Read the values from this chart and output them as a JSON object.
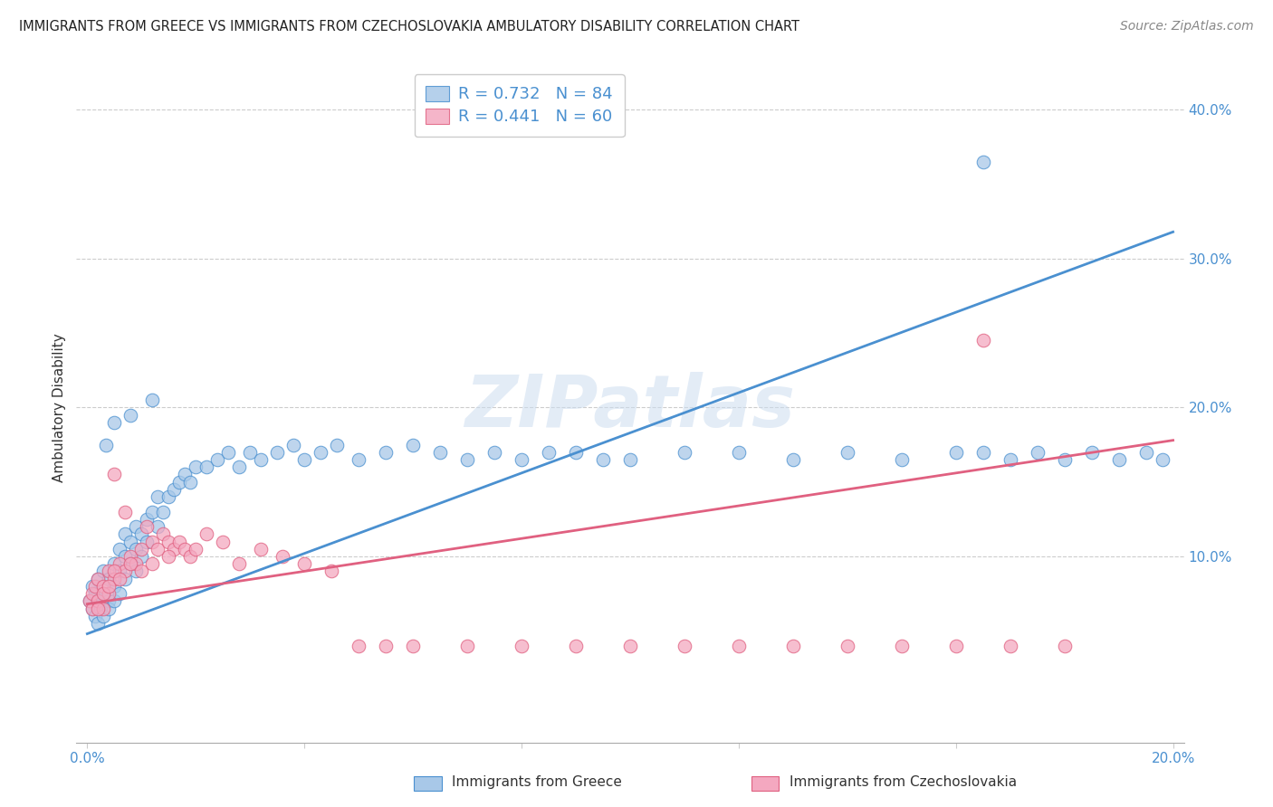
{
  "title": "IMMIGRANTS FROM GREECE VS IMMIGRANTS FROM CZECHOSLOVAKIA AMBULATORY DISABILITY CORRELATION CHART",
  "source": "Source: ZipAtlas.com",
  "ylabel": "Ambulatory Disability",
  "watermark": "ZIPatlas",
  "legend_line1": "R = 0.732   N = 84",
  "legend_line2": "R = 0.441   N = 60",
  "blue_color": "#a8c8e8",
  "pink_color": "#f4a8c0",
  "blue_line_color": "#4a90d0",
  "pink_line_color": "#e06080",
  "blue_text_color": "#4a90d0",
  "pink_text_color": "#e06080",
  "right_tick_color": "#4a90d0",
  "xlim": [
    -0.002,
    0.202
  ],
  "ylim": [
    -0.025,
    0.425
  ],
  "blue_line_x0": 0.0,
  "blue_line_y0": 0.048,
  "blue_line_x1": 0.2,
  "blue_line_y1": 0.318,
  "pink_line_x0": 0.0,
  "pink_line_y0": 0.068,
  "pink_line_x1": 0.2,
  "pink_line_y1": 0.178,
  "blue_x": [
    0.0005,
    0.001,
    0.001,
    0.0015,
    0.0015,
    0.002,
    0.002,
    0.002,
    0.0025,
    0.003,
    0.003,
    0.003,
    0.004,
    0.004,
    0.004,
    0.005,
    0.005,
    0.005,
    0.006,
    0.006,
    0.006,
    0.007,
    0.007,
    0.007,
    0.008,
    0.008,
    0.009,
    0.009,
    0.009,
    0.01,
    0.01,
    0.011,
    0.011,
    0.012,
    0.013,
    0.013,
    0.014,
    0.015,
    0.016,
    0.017,
    0.018,
    0.019,
    0.02,
    0.022,
    0.024,
    0.026,
    0.028,
    0.03,
    0.032,
    0.035,
    0.038,
    0.04,
    0.043,
    0.046,
    0.05,
    0.055,
    0.06,
    0.065,
    0.07,
    0.075,
    0.08,
    0.085,
    0.09,
    0.095,
    0.1,
    0.11,
    0.12,
    0.13,
    0.14,
    0.15,
    0.16,
    0.165,
    0.17,
    0.175,
    0.18,
    0.185,
    0.19,
    0.195,
    0.198,
    0.0035,
    0.005,
    0.008,
    0.012,
    0.165
  ],
  "blue_y": [
    0.07,
    0.065,
    0.08,
    0.06,
    0.075,
    0.055,
    0.07,
    0.085,
    0.065,
    0.06,
    0.075,
    0.09,
    0.07,
    0.085,
    0.065,
    0.08,
    0.095,
    0.07,
    0.09,
    0.105,
    0.075,
    0.1,
    0.115,
    0.085,
    0.11,
    0.095,
    0.12,
    0.105,
    0.09,
    0.115,
    0.1,
    0.125,
    0.11,
    0.13,
    0.12,
    0.14,
    0.13,
    0.14,
    0.145,
    0.15,
    0.155,
    0.15,
    0.16,
    0.16,
    0.165,
    0.17,
    0.16,
    0.17,
    0.165,
    0.17,
    0.175,
    0.165,
    0.17,
    0.175,
    0.165,
    0.17,
    0.175,
    0.17,
    0.165,
    0.17,
    0.165,
    0.17,
    0.17,
    0.165,
    0.165,
    0.17,
    0.17,
    0.165,
    0.17,
    0.165,
    0.17,
    0.17,
    0.165,
    0.17,
    0.165,
    0.17,
    0.165,
    0.17,
    0.165,
    0.175,
    0.19,
    0.195,
    0.205,
    0.365
  ],
  "pink_x": [
    0.0005,
    0.001,
    0.001,
    0.0015,
    0.002,
    0.002,
    0.003,
    0.003,
    0.004,
    0.004,
    0.005,
    0.005,
    0.006,
    0.007,
    0.007,
    0.008,
    0.009,
    0.01,
    0.011,
    0.012,
    0.013,
    0.014,
    0.015,
    0.016,
    0.017,
    0.018,
    0.019,
    0.02,
    0.022,
    0.025,
    0.028,
    0.032,
    0.036,
    0.04,
    0.045,
    0.05,
    0.055,
    0.06,
    0.07,
    0.08,
    0.09,
    0.1,
    0.11,
    0.12,
    0.13,
    0.14,
    0.15,
    0.16,
    0.17,
    0.18,
    0.003,
    0.005,
    0.006,
    0.008,
    0.01,
    0.012,
    0.015,
    0.165,
    0.002,
    0.004
  ],
  "pink_y": [
    0.07,
    0.065,
    0.075,
    0.08,
    0.07,
    0.085,
    0.065,
    0.08,
    0.09,
    0.075,
    0.155,
    0.085,
    0.095,
    0.13,
    0.09,
    0.1,
    0.095,
    0.105,
    0.12,
    0.11,
    0.105,
    0.115,
    0.11,
    0.105,
    0.11,
    0.105,
    0.1,
    0.105,
    0.115,
    0.11,
    0.095,
    0.105,
    0.1,
    0.095,
    0.09,
    0.04,
    0.04,
    0.04,
    0.04,
    0.04,
    0.04,
    0.04,
    0.04,
    0.04,
    0.04,
    0.04,
    0.04,
    0.04,
    0.04,
    0.04,
    0.075,
    0.09,
    0.085,
    0.095,
    0.09,
    0.095,
    0.1,
    0.245,
    0.065,
    0.08
  ]
}
